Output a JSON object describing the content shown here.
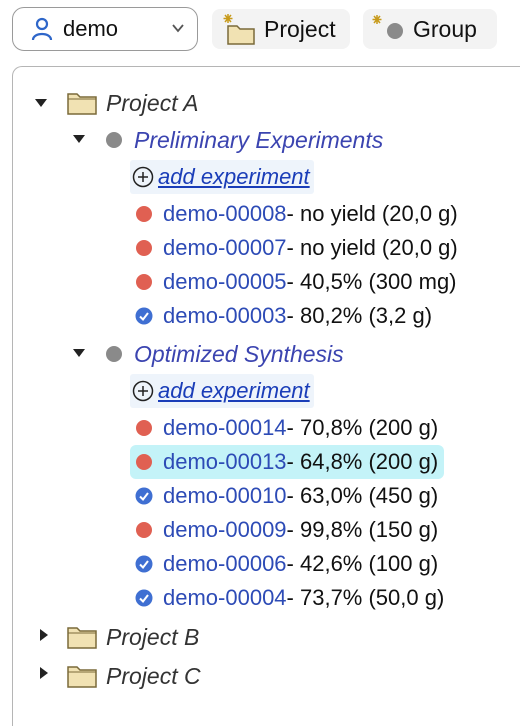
{
  "toolbar": {
    "user_label": "demo",
    "project_button": "Project",
    "group_button": "Group"
  },
  "colors": {
    "failed": "#e06052",
    "done": "#3f6fd2",
    "group_title": "#3b44b0",
    "experiment_id": "#2d4bb6",
    "selection": "#c4f3f8"
  },
  "tree": {
    "projects": [
      {
        "name": "Project A",
        "expanded": true,
        "groups": [
          {
            "name": "Preliminary Experiments",
            "add_label": "add experiment",
            "experiments": [
              {
                "id": "demo-00008",
                "detail": " - no yield (20,0 g)",
                "status": "failed"
              },
              {
                "id": "demo-00007",
                "detail": " - no yield (20,0 g)",
                "status": "failed"
              },
              {
                "id": "demo-00005",
                "detail": " - 40,5% (300 mg)",
                "status": "failed"
              },
              {
                "id": "demo-00003",
                "detail": " - 80,2% (3,2 g)",
                "status": "done"
              }
            ]
          },
          {
            "name": "Optimized Synthesis",
            "add_label": "add experiment",
            "experiments": [
              {
                "id": "demo-00014",
                "detail": " - 70,8% (200 g)",
                "status": "failed"
              },
              {
                "id": "demo-00013",
                "detail": " - 64,8% (200 g)",
                "status": "failed",
                "selected": true
              },
              {
                "id": "demo-00010",
                "detail": " - 63,0% (450 g)",
                "status": "done"
              },
              {
                "id": "demo-00009",
                "detail": " - 99,8% (150 g)",
                "status": "failed"
              },
              {
                "id": "demo-00006",
                "detail": " - 42,6% (100 g)",
                "status": "done"
              },
              {
                "id": "demo-00004",
                "detail": " - 73,7% (50,0 g)",
                "status": "done"
              }
            ]
          }
        ]
      },
      {
        "name": "Project B",
        "expanded": false
      },
      {
        "name": "Project C",
        "expanded": false
      }
    ]
  }
}
